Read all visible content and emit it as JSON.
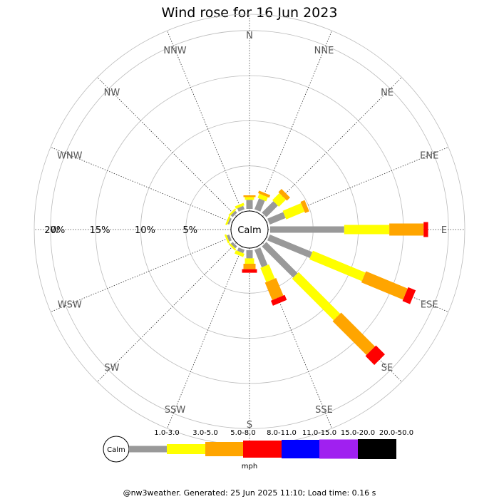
{
  "chart_data": {
    "type": "windrose",
    "title": "Wind rose for 16 Jun 2023",
    "directions": [
      "N",
      "NNE",
      "NE",
      "ENE",
      "E",
      "ESE",
      "SE",
      "SSE",
      "S",
      "SSW",
      "SW",
      "WSW",
      "W",
      "WNW",
      "NW",
      "NNW"
    ],
    "rings": [
      {
        "value": 5,
        "label": "5%"
      },
      {
        "value": 10,
        "label": "10%"
      },
      {
        "value": 15,
        "label": "15%"
      },
      {
        "value": 20,
        "label": "20%"
      }
    ],
    "ring_max": 21.8,
    "calm_label": "Calm",
    "unit": "mph",
    "speed_bins": [
      {
        "label": "1.0-3.0",
        "color": "#999999"
      },
      {
        "label": "3.0-5.0",
        "color": "#ffff00"
      },
      {
        "label": "5.0-8.0",
        "color": "#ffa500"
      },
      {
        "label": "8.0-11.0",
        "color": "#ff0000"
      },
      {
        "label": "11.0-15.0",
        "color": "#0000ff"
      },
      {
        "label": "15.0-20.0",
        "color": "#a020f0"
      },
      {
        "label": "20.0-50.0",
        "color": "#000000"
      }
    ],
    "series": [
      {
        "direction": "N",
        "values": [
          1.0,
          0.3,
          0.2,
          0,
          0,
          0,
          0
        ]
      },
      {
        "direction": "NNE",
        "values": [
          1.3,
          0.5,
          0.3,
          0,
          0,
          0,
          0
        ]
      },
      {
        "direction": "NE",
        "values": [
          1.8,
          1.1,
          0.5,
          0,
          0,
          0,
          0
        ]
      },
      {
        "direction": "ENE",
        "values": [
          1.9,
          2.2,
          0.5,
          0,
          0,
          0,
          0
        ]
      },
      {
        "direction": "E",
        "values": [
          8.2,
          5.0,
          3.8,
          0.5,
          0,
          0,
          0
        ]
      },
      {
        "direction": "ESE",
        "values": [
          5.1,
          6.3,
          5.0,
          0.9,
          0,
          0,
          0
        ]
      },
      {
        "direction": "SE",
        "values": [
          4.9,
          6.5,
          5.3,
          1.4,
          0,
          0,
          0
        ]
      },
      {
        "direction": "SSE",
        "values": [
          2.1,
          1.7,
          2.1,
          0.6,
          0,
          0,
          0
        ]
      },
      {
        "direction": "S",
        "values": [
          0.9,
          0.6,
          0.6,
          0.4,
          0,
          0,
          0
        ]
      },
      {
        "direction": "SSW",
        "values": [
          0.4,
          0.4,
          0,
          0,
          0,
          0,
          0
        ]
      },
      {
        "direction": "SW",
        "values": [
          0.3,
          0.2,
          0,
          0,
          0,
          0,
          0
        ]
      },
      {
        "direction": "WSW",
        "values": [
          0.3,
          0.2,
          0,
          0,
          0,
          0,
          0
        ]
      },
      {
        "direction": "W",
        "values": [
          0,
          0,
          0,
          0,
          0,
          0,
          0
        ]
      },
      {
        "direction": "WNW",
        "values": [
          0.2,
          0.2,
          0,
          0,
          0,
          0,
          0
        ]
      },
      {
        "direction": "NW",
        "values": [
          0.3,
          0.2,
          0,
          0,
          0,
          0,
          0
        ]
      },
      {
        "direction": "NNW",
        "values": [
          0.4,
          0.3,
          0,
          0,
          0,
          0,
          0
        ]
      }
    ]
  },
  "footer": "@nw3weather. Generated: 25 Jun 2025 11:10; Load time: 0.16 s"
}
